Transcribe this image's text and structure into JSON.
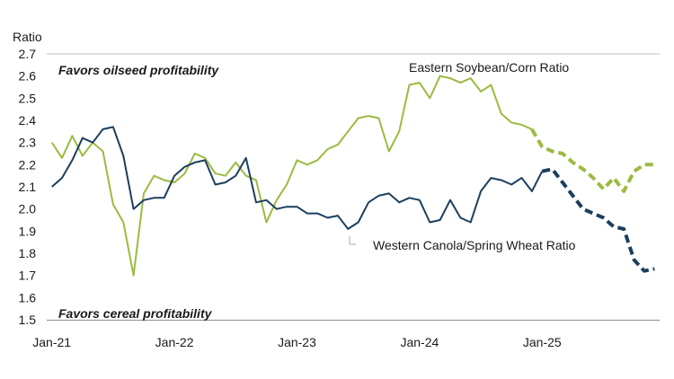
{
  "chart_data": {
    "type": "line",
    "ylabel": "Ratio",
    "ylim": [
      1.5,
      2.7
    ],
    "yticks": [
      "1.5",
      "1.6",
      "1.7",
      "1.8",
      "1.9",
      "2.0",
      "2.1",
      "2.2",
      "2.3",
      "2.4",
      "2.5",
      "2.6",
      "2.7"
    ],
    "xlim": [
      "2021-01",
      "2025-12"
    ],
    "xticks": [
      "Jan-21",
      "Jan-22",
      "Jan-23",
      "Jan-24",
      "Jan-25"
    ],
    "grid": "horizontal-top-only",
    "annotations": {
      "top_note": "Favors oilseed profitability",
      "bottom_note": "Favors cereal profitability"
    },
    "series": [
      {
        "name": "Eastern Soybean/Corn Ratio",
        "color": "#9bbb40",
        "x": [
          "2021-01",
          "2021-02",
          "2021-03",
          "2021-04",
          "2021-05",
          "2021-06",
          "2021-07",
          "2021-08",
          "2021-09",
          "2021-10",
          "2021-11",
          "2021-12",
          "2022-01",
          "2022-02",
          "2022-03",
          "2022-04",
          "2022-05",
          "2022-06",
          "2022-07",
          "2022-08",
          "2022-09",
          "2022-10",
          "2022-11",
          "2022-12",
          "2023-01",
          "2023-02",
          "2023-03",
          "2023-04",
          "2023-05",
          "2023-06",
          "2023-07",
          "2023-08",
          "2023-09",
          "2023-10",
          "2023-11",
          "2023-12",
          "2024-01",
          "2024-02",
          "2024-03",
          "2024-04",
          "2024-05",
          "2024-06",
          "2024-07",
          "2024-08",
          "2024-09",
          "2024-10",
          "2024-11",
          "2024-12",
          "2025-01",
          "2025-02",
          "2025-03",
          "2025-04",
          "2025-05",
          "2025-06",
          "2025-07",
          "2025-08",
          "2025-09",
          "2025-10",
          "2025-11",
          "2025-12"
        ],
        "values": [
          2.3,
          2.23,
          2.33,
          2.24,
          2.3,
          2.26,
          2.02,
          1.94,
          1.7,
          2.07,
          2.15,
          2.13,
          2.12,
          2.16,
          2.25,
          2.23,
          2.16,
          2.15,
          2.21,
          2.15,
          2.13,
          1.94,
          2.04,
          2.11,
          2.22,
          2.2,
          2.22,
          2.27,
          2.29,
          2.35,
          2.41,
          2.42,
          2.41,
          2.26,
          2.35,
          2.56,
          2.57,
          2.5,
          2.6,
          2.59,
          2.57,
          2.59,
          2.53,
          2.56,
          2.43,
          2.39,
          2.38,
          2.36,
          2.28,
          2.26,
          2.25,
          2.21,
          2.18,
          2.14,
          2.09,
          2.14,
          2.08,
          2.17,
          2.2,
          2.2
        ],
        "forecast_from": "2024-12"
      },
      {
        "name": "Western Canola/Spring Wheat Ratio",
        "color": "#1b3f5e",
        "x": [
          "2021-01",
          "2021-02",
          "2021-03",
          "2021-04",
          "2021-05",
          "2021-06",
          "2021-07",
          "2021-08",
          "2021-09",
          "2021-10",
          "2021-11",
          "2021-12",
          "2022-01",
          "2022-02",
          "2022-03",
          "2022-04",
          "2022-05",
          "2022-06",
          "2022-07",
          "2022-08",
          "2022-09",
          "2022-10",
          "2022-11",
          "2022-12",
          "2023-01",
          "2023-02",
          "2023-03",
          "2023-04",
          "2023-05",
          "2023-06",
          "2023-07",
          "2023-08",
          "2023-09",
          "2023-10",
          "2023-11",
          "2023-12",
          "2024-01",
          "2024-02",
          "2024-03",
          "2024-04",
          "2024-05",
          "2024-06",
          "2024-07",
          "2024-08",
          "2024-09",
          "2024-10",
          "2024-11",
          "2024-12",
          "2025-01",
          "2025-02",
          "2025-03",
          "2025-04",
          "2025-05",
          "2025-06",
          "2025-07",
          "2025-08",
          "2025-09",
          "2025-10",
          "2025-11",
          "2025-12"
        ],
        "values": [
          2.1,
          2.14,
          2.22,
          2.32,
          2.3,
          2.36,
          2.37,
          2.24,
          2.0,
          2.04,
          2.05,
          2.05,
          2.15,
          2.19,
          2.21,
          2.22,
          2.11,
          2.12,
          2.15,
          2.23,
          2.03,
          2.04,
          2.0,
          2.01,
          2.01,
          1.98,
          1.98,
          1.96,
          1.97,
          1.91,
          1.94,
          2.03,
          2.06,
          2.07,
          2.03,
          2.05,
          2.04,
          1.94,
          1.95,
          2.04,
          1.96,
          1.94,
          2.08,
          2.14,
          2.13,
          2.11,
          2.14,
          2.08,
          2.17,
          2.18,
          2.12,
          2.06,
          2.0,
          1.98,
          1.96,
          1.92,
          1.91,
          1.77,
          1.72,
          1.73
        ],
        "forecast_from": "2025-01"
      }
    ]
  }
}
